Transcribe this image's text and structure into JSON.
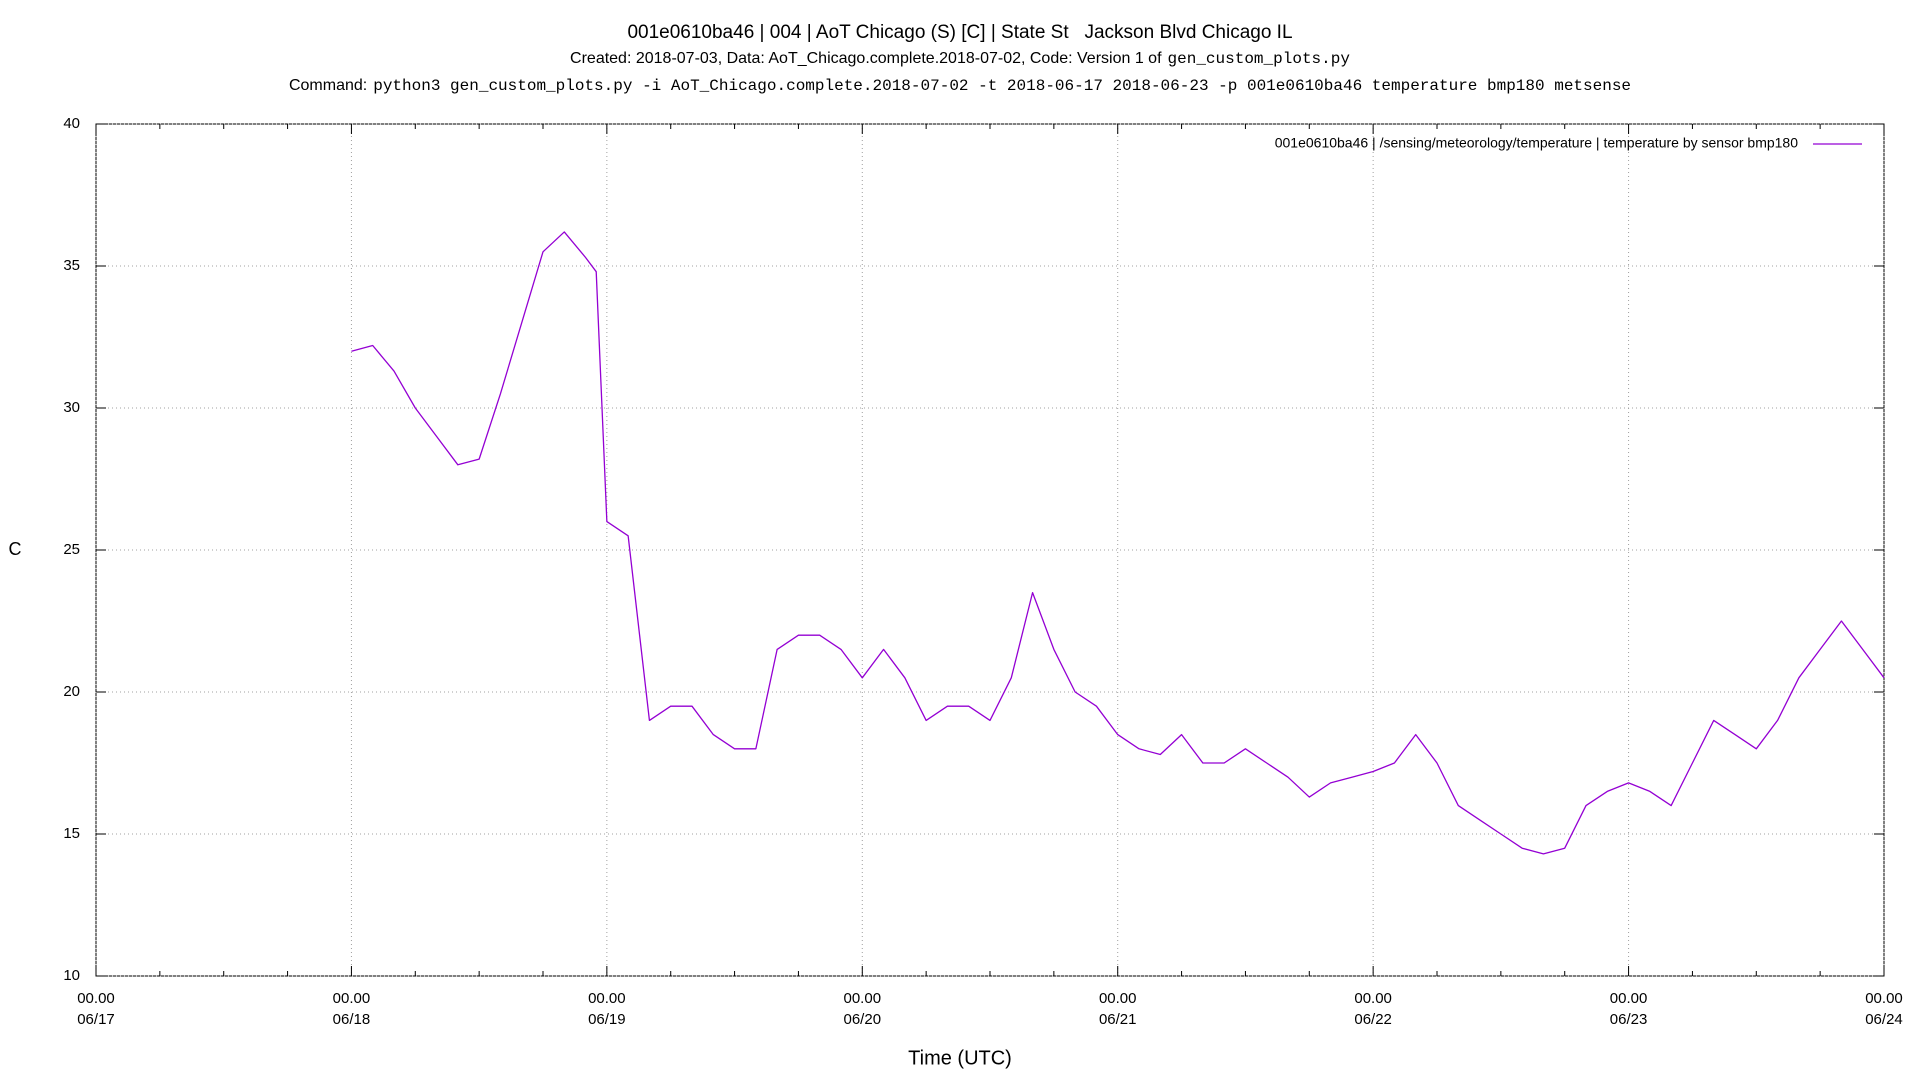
{
  "chart_data": {
    "type": "line",
    "title": "001e0610ba46 | 004 | AoT Chicago (S) [C] | State St   Jackson Blvd Chicago IL",
    "subtitle": "Created: 2018-07-03, Data: AoT_Chicago.complete.2018-07-02, Code: Version 1 of",
    "subtitle_code": "gen_custom_plots.py",
    "command_label": "Command:",
    "command": "python3 gen_custom_plots.py -i AoT_Chicago.complete.2018-07-02 -t 2018-06-17 2018-06-23 -p 001e0610ba46 temperature bmp180 metsense",
    "x_label": "Time (UTC)",
    "y_label": "C",
    "xlim": [
      "06/17 00.00",
      "06/24 00.00"
    ],
    "xticks": [
      {
        "value": "06/17 00.00",
        "label": [
          "00.00",
          "06/17"
        ]
      },
      {
        "value": "06/18 00.00",
        "label": [
          "00.00",
          "06/18"
        ]
      },
      {
        "value": "06/19 00.00",
        "label": [
          "00.00",
          "06/19"
        ]
      },
      {
        "value": "06/20 00.00",
        "label": [
          "00.00",
          "06/20"
        ]
      },
      {
        "value": "06/21 00.00",
        "label": [
          "00.00",
          "06/21"
        ]
      },
      {
        "value": "06/22 00.00",
        "label": [
          "00.00",
          "06/22"
        ]
      },
      {
        "value": "06/23 00.00",
        "label": [
          "00.00",
          "06/23"
        ]
      },
      {
        "value": "06/24 00.00",
        "label": [
          "00.00",
          "06/24"
        ]
      }
    ],
    "ylim": [
      10,
      40
    ],
    "yticks": [
      10,
      15,
      20,
      25,
      30,
      35,
      40
    ],
    "grid": true,
    "legend": "top-right",
    "x": [
      "06/18 00.00",
      "06/18 02.00",
      "06/18 04.00",
      "06/18 06.00",
      "06/18 08.00",
      "06/18 10.00",
      "06/18 12.00",
      "06/18 14.00",
      "06/18 16.00",
      "06/18 18.00",
      "06/18 20.00",
      "06/18 22.00",
      "06/18 23.00",
      "06/19 00.00",
      "06/19 02.00",
      "06/19 04.00",
      "06/19 06.00",
      "06/19 08.00",
      "06/19 10.00",
      "06/19 12.00",
      "06/19 14.00",
      "06/19 16.00",
      "06/19 18.00",
      "06/19 20.00",
      "06/19 22.00",
      "06/20 00.00",
      "06/20 02.00",
      "06/20 04.00",
      "06/20 06.00",
      "06/20 08.00",
      "06/20 10.00",
      "06/20 12.00",
      "06/20 14.00",
      "06/20 16.00",
      "06/20 18.00",
      "06/20 20.00",
      "06/20 22.00",
      "06/21 00.00",
      "06/21 02.00",
      "06/21 04.00",
      "06/21 06.00",
      "06/21 08.00",
      "06/21 10.00",
      "06/21 12.00",
      "06/21 14.00",
      "06/21 16.00",
      "06/21 18.00",
      "06/21 20.00",
      "06/21 22.00",
      "06/22 00.00",
      "06/22 02.00",
      "06/22 04.00",
      "06/22 06.00",
      "06/22 08.00",
      "06/22 10.00",
      "06/22 12.00",
      "06/22 14.00",
      "06/22 16.00",
      "06/22 18.00",
      "06/22 20.00",
      "06/22 22.00",
      "06/23 00.00",
      "06/23 02.00",
      "06/23 04.00",
      "06/23 06.00",
      "06/23 08.00",
      "06/23 10.00",
      "06/23 12.00",
      "06/23 14.00",
      "06/23 16.00",
      "06/23 18.00",
      "06/23 20.00",
      "06/23 22.00",
      "06/24 00.00"
    ],
    "series": [
      {
        "name": "001e0610ba46 | /sensing/meteorology/temperature | temperature by sensor bmp180",
        "color": "#9400d3",
        "values": [
          32.0,
          32.2,
          31.3,
          30.0,
          29.0,
          28.0,
          28.2,
          30.5,
          33.0,
          35.5,
          36.2,
          35.3,
          34.8,
          26.0,
          25.5,
          19.0,
          19.5,
          19.5,
          18.5,
          18.0,
          18.0,
          21.5,
          22.0,
          22.0,
          21.5,
          20.5,
          21.5,
          20.5,
          19.0,
          19.5,
          19.5,
          19.0,
          20.5,
          23.5,
          21.5,
          20.0,
          19.5,
          18.5,
          18.0,
          17.8,
          18.5,
          17.5,
          17.5,
          18.0,
          17.5,
          17.0,
          16.3,
          16.8,
          17.0,
          17.2,
          17.5,
          18.5,
          17.5,
          16.0,
          15.5,
          15.0,
          14.5,
          14.3,
          14.5,
          16.0,
          16.5,
          16.8,
          16.5,
          16.0,
          17.5,
          19.0,
          18.5,
          18.0,
          19.0,
          20.5,
          21.5,
          22.5,
          21.5,
          20.5
        ]
      }
    ]
  }
}
